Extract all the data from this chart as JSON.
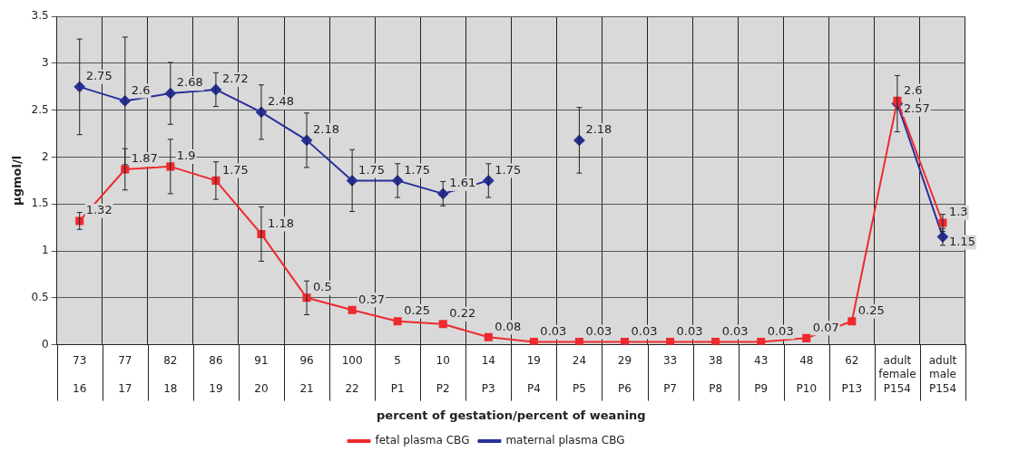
{
  "chart_data": {
    "type": "line",
    "xlabel": "percent of gestation/percent of weaning",
    "ylabel": "µgmol/l",
    "categories": [
      "73\n16",
      "77\n17",
      "82\n18",
      "86\n19",
      "91\n20",
      "96\n21",
      "100\n22",
      "5\nP1",
      "10\nP2",
      "14\nP3",
      "19\nP4",
      "24\nP5",
      "29\nP6",
      "33\nP7",
      "38\nP8",
      "43\nP9",
      "48\nP10",
      "62\nP13",
      "adult\nfemale\nP154",
      "adult\nmale\nP154"
    ],
    "series": [
      {
        "name": "fetal plasma CBG",
        "color": "#ee2a2e",
        "marker": "square",
        "values": [
          1.32,
          1.87,
          1.9,
          1.75,
          1.18,
          0.5,
          0.37,
          0.25,
          0.22,
          0.08,
          0.03,
          0.03,
          0.03,
          0.03,
          0.03,
          0.03,
          0.07,
          0.25,
          2.6,
          1.3
        ],
        "errors": [
          0.09,
          0.22,
          0.29,
          0.2,
          0.29,
          0.18,
          null,
          null,
          null,
          null,
          null,
          null,
          null,
          null,
          null,
          null,
          null,
          null,
          null,
          0.09
        ]
      },
      {
        "name": "maternal plasma CBG",
        "color": "#27309a",
        "marker": "diamond",
        "values": [
          2.75,
          2.6,
          2.68,
          2.72,
          2.48,
          2.18,
          1.75,
          1.75,
          1.61,
          1.75,
          null,
          2.18,
          null,
          null,
          null,
          null,
          null,
          null,
          2.57,
          1.15
        ],
        "errors": [
          0.51,
          0.68,
          0.33,
          0.18,
          0.29,
          0.29,
          0.33,
          0.18,
          0.13,
          0.18,
          null,
          0.35,
          null,
          null,
          null,
          null,
          null,
          null,
          0.3,
          0.09
        ]
      }
    ],
    "ylim": [
      0,
      3.5
    ],
    "yticks": [
      0,
      0.5,
      1,
      1.5,
      2,
      2.5,
      3,
      3.5
    ],
    "grid": true,
    "legend": "bottom",
    "data_labels": true
  }
}
